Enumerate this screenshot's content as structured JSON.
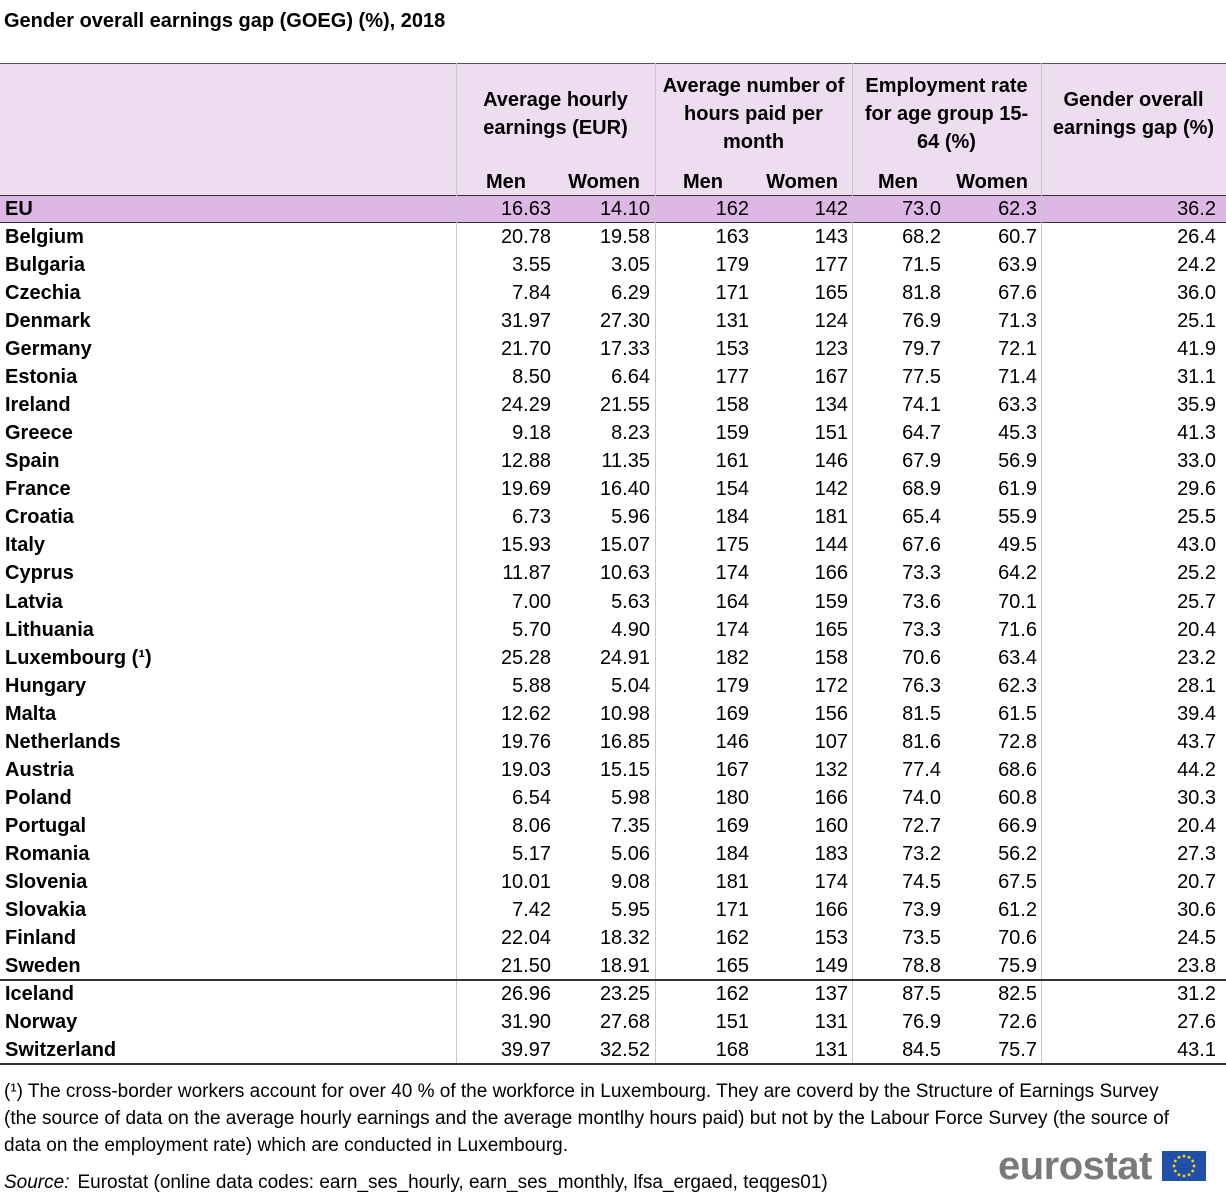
{
  "title": "Gender overall earnings gap (GOEG)  (%), 2018",
  "table": {
    "groups": [
      "Average hourly earnings (EUR)",
      "Average number of hours paid per month",
      "Employment rate for age group 15-64 (%)",
      "Gender overall earnings gap (%)"
    ],
    "subheaders": [
      "Men",
      "Women",
      "Men",
      "Women",
      "Men",
      "Women"
    ],
    "rows": [
      {
        "label": "EU",
        "values": [
          "16.63",
          "14.10",
          "162",
          "142",
          "73.0",
          "62.3",
          "36.2"
        ]
      },
      {
        "label": "Belgium",
        "values": [
          "20.78",
          "19.58",
          "163",
          "143",
          "68.2",
          "60.7",
          "26.4"
        ]
      },
      {
        "label": "Bulgaria",
        "values": [
          "3.55",
          "3.05",
          "179",
          "177",
          "71.5",
          "63.9",
          "24.2"
        ]
      },
      {
        "label": "Czechia",
        "values": [
          "7.84",
          "6.29",
          "171",
          "165",
          "81.8",
          "67.6",
          "36.0"
        ]
      },
      {
        "label": "Denmark",
        "values": [
          "31.97",
          "27.30",
          "131",
          "124",
          "76.9",
          "71.3",
          "25.1"
        ]
      },
      {
        "label": "Germany",
        "values": [
          "21.70",
          "17.33",
          "153",
          "123",
          "79.7",
          "72.1",
          "41.9"
        ]
      },
      {
        "label": "Estonia",
        "values": [
          "8.50",
          "6.64",
          "177",
          "167",
          "77.5",
          "71.4",
          "31.1"
        ]
      },
      {
        "label": "Ireland",
        "values": [
          "24.29",
          "21.55",
          "158",
          "134",
          "74.1",
          "63.3",
          "35.9"
        ]
      },
      {
        "label": "Greece",
        "values": [
          "9.18",
          "8.23",
          "159",
          "151",
          "64.7",
          "45.3",
          "41.3"
        ]
      },
      {
        "label": "Spain",
        "values": [
          "12.88",
          "11.35",
          "161",
          "146",
          "67.9",
          "56.9",
          "33.0"
        ]
      },
      {
        "label": "France",
        "values": [
          "19.69",
          "16.40",
          "154",
          "142",
          "68.9",
          "61.9",
          "29.6"
        ]
      },
      {
        "label": "Croatia",
        "values": [
          "6.73",
          "5.96",
          "184",
          "181",
          "65.4",
          "55.9",
          "25.5"
        ]
      },
      {
        "label": "Italy",
        "values": [
          "15.93",
          "15.07",
          "175",
          "144",
          "67.6",
          "49.5",
          "43.0"
        ]
      },
      {
        "label": "Cyprus",
        "values": [
          "11.87",
          "10.63",
          "174",
          "166",
          "73.3",
          "64.2",
          "25.2"
        ]
      },
      {
        "label": "Latvia",
        "values": [
          "7.00",
          "5.63",
          "164",
          "159",
          "73.6",
          "70.1",
          "25.7"
        ]
      },
      {
        "label": "Lithuania",
        "values": [
          "5.70",
          "4.90",
          "174",
          "165",
          "73.3",
          "71.6",
          "20.4"
        ]
      },
      {
        "label": "Luxembourg (¹)",
        "values": [
          "25.28",
          "24.91",
          "182",
          "158",
          "70.6",
          "63.4",
          "23.2"
        ]
      },
      {
        "label": "Hungary",
        "values": [
          "5.88",
          "5.04",
          "179",
          "172",
          "76.3",
          "62.3",
          "28.1"
        ]
      },
      {
        "label": "Malta",
        "values": [
          "12.62",
          "10.98",
          "169",
          "156",
          "81.5",
          "61.5",
          "39.4"
        ]
      },
      {
        "label": "Netherlands",
        "values": [
          "19.76",
          "16.85",
          "146",
          "107",
          "81.6",
          "72.8",
          "43.7"
        ]
      },
      {
        "label": "Austria",
        "values": [
          "19.03",
          "15.15",
          "167",
          "132",
          "77.4",
          "68.6",
          "44.2"
        ]
      },
      {
        "label": "Poland",
        "values": [
          "6.54",
          "5.98",
          "180",
          "166",
          "74.0",
          "60.8",
          "30.3"
        ]
      },
      {
        "label": "Portugal",
        "values": [
          "8.06",
          "7.35",
          "169",
          "160",
          "72.7",
          "66.9",
          "20.4"
        ]
      },
      {
        "label": "Romania",
        "values": [
          "5.17",
          "5.06",
          "184",
          "183",
          "73.2",
          "56.2",
          "27.3"
        ]
      },
      {
        "label": "Slovenia",
        "values": [
          "10.01",
          "9.08",
          "181",
          "174",
          "74.5",
          "67.5",
          "20.7"
        ]
      },
      {
        "label": "Slovakia",
        "values": [
          "7.42",
          "5.95",
          "171",
          "166",
          "73.9",
          "61.2",
          "30.6"
        ]
      },
      {
        "label": "Finland",
        "values": [
          "22.04",
          "18.32",
          "162",
          "153",
          "73.5",
          "70.6",
          "24.5"
        ]
      },
      {
        "label": "Sweden",
        "values": [
          "21.50",
          "18.91",
          "165",
          "149",
          "78.8",
          "75.9",
          "23.8"
        ]
      },
      {
        "label": "Iceland",
        "values": [
          "26.96",
          "23.25",
          "162",
          "137",
          "87.5",
          "82.5",
          "31.2"
        ]
      },
      {
        "label": "Norway",
        "values": [
          "31.90",
          "27.68",
          "151",
          "131",
          "76.9",
          "72.6",
          "27.6"
        ]
      },
      {
        "label": "Switzerland",
        "values": [
          "39.97",
          "32.52",
          "168",
          "131",
          "84.5",
          "75.7",
          "43.1"
        ]
      }
    ]
  },
  "footnote": "(¹) The cross-border workers account for over 40 % of the workforce in Luxembourg. They are coverd by the Structure of Earnings Survey (the source of data on the average hourly earnings and the average montlhy hours paid) but not by the Labour Force Survey (the source of data on the employment rate) which are conducted in Luxembourg.",
  "source": {
    "label": "Source:",
    "text": "Eurostat (online data codes: earn_ses_hourly, earn_ses_monthly, lfsa_ergaed, teqges01)"
  },
  "logo": "eurostat"
}
